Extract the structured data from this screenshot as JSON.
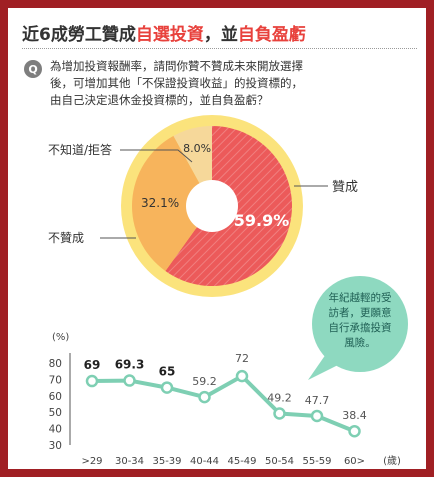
{
  "title": {
    "prefix": "近6成勞工贊成",
    "highlight1": "自選投資",
    "sep": "，並",
    "highlight2": "自負盈虧"
  },
  "question": {
    "icon_label": "Q",
    "text": "為增加投資報酬率，請問你贊不贊成未來開放選擇\n後，可增加其他「不保證投資收益」的投資標的，\n由自己決定退休金投資標的，並自負盈虧？"
  },
  "colors": {
    "frame": "#a01f24",
    "approve": "#ec5a5a",
    "disapprove": "#f7b45c",
    "unknown": "#f6d89a",
    "pie_ring": "#fbe37c",
    "line": "#7ecfb3",
    "bubble": "#8ed9c0"
  },
  "chart_data": [
    {
      "type": "pie",
      "slices": [
        {
          "label": "贊成",
          "value": 59.9,
          "value_label": "59.9%"
        },
        {
          "label": "不贊成",
          "value": 32.1,
          "value_label": "32.1%"
        },
        {
          "label": "不知道/拒答",
          "value": 8.0,
          "value_label": "8.0%"
        }
      ]
    },
    {
      "type": "line",
      "ylabel": "(%)",
      "xunit": "(歲)",
      "categories": [
        ">29",
        "30-34",
        "35-39",
        "40-44",
        "45-49",
        "50-54",
        "55-59",
        "60>"
      ],
      "values": [
        69,
        69.3,
        65,
        59.2,
        72,
        49.2,
        47.7,
        38.4
      ],
      "value_labels": [
        "69",
        "69.3",
        "65",
        "59.2",
        "72",
        "49.2",
        "47.7",
        "38.4"
      ],
      "yticks": [
        "80",
        "70",
        "60",
        "50",
        "40",
        "30"
      ],
      "ylim": [
        30,
        80
      ],
      "annotation": "年紀越輕的受\n訪者，更願意\n自行承擔投資\n風險。"
    }
  ]
}
